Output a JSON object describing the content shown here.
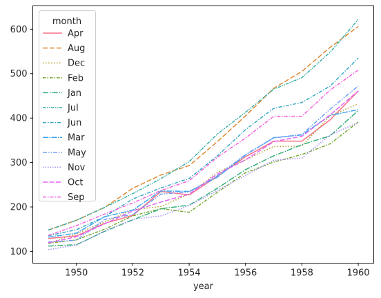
{
  "chart_data": {
    "type": "line",
    "title": "",
    "xlabel": "year",
    "ylabel": "",
    "xlim": [
      1948.45,
      1960.55
    ],
    "ylim": [
      73.5,
      652.5
    ],
    "xticks": [
      1950,
      1952,
      1954,
      1956,
      1958,
      1960
    ],
    "yticks": [
      100,
      200,
      300,
      400,
      500,
      600
    ],
    "grid": false,
    "legend": {
      "title": "month",
      "position": "top-left"
    },
    "x": [
      1949,
      1950,
      1951,
      1952,
      1953,
      1954,
      1955,
      1956,
      1957,
      1958,
      1959,
      1960
    ],
    "series": [
      {
        "name": "Apr",
        "color": "#f77189",
        "dash": "",
        "values": [
          129,
          135,
          163,
          181,
          235,
          227,
          269,
          313,
          348,
          348,
          396,
          461
        ]
      },
      {
        "name": "Aug",
        "color": "#dc8932",
        "dash": "7 3",
        "values": [
          148,
          170,
          199,
          242,
          272,
          293,
          347,
          405,
          467,
          505,
          559,
          606
        ]
      },
      {
        "name": "Dec",
        "color": "#ae9d31",
        "dash": "1.5 2.5",
        "values": [
          118,
          140,
          166,
          194,
          201,
          229,
          278,
          306,
          336,
          337,
          405,
          432
        ]
      },
      {
        "name": "Feb",
        "color": "#77ab31",
        "dash": "4.5 2 1.5 2",
        "values": [
          118,
          126,
          150,
          180,
          196,
          188,
          233,
          277,
          301,
          318,
          342,
          391
        ]
      },
      {
        "name": "Jan",
        "color": "#33b07a",
        "dash": "8 2 1.5 2",
        "values": [
          112,
          115,
          145,
          171,
          196,
          204,
          242,
          284,
          315,
          340,
          360,
          417
        ]
      },
      {
        "name": "Jul",
        "color": "#36ada4",
        "dash": "4.5 1.5 1.5 1.5 1.5 1.5",
        "values": [
          148,
          170,
          199,
          230,
          264,
          302,
          364,
          413,
          465,
          491,
          548,
          622
        ]
      },
      {
        "name": "Jun",
        "color": "#38a9c5",
        "dash": "5 2 1.5 2",
        "values": [
          135,
          149,
          178,
          218,
          243,
          264,
          315,
          374,
          422,
          435,
          472,
          535
        ]
      },
      {
        "name": "Mar",
        "color": "#3ba3ec",
        "dash": "8 1.5 1.5 1.5",
        "values": [
          132,
          141,
          178,
          193,
          236,
          235,
          267,
          317,
          356,
          362,
          406,
          419
        ]
      },
      {
        "name": "May",
        "color": "#6e9bf4",
        "dash": "6 2 1.5 2 1.5 2",
        "values": [
          121,
          125,
          172,
          183,
          229,
          234,
          270,
          318,
          355,
          363,
          420,
          472
        ]
      },
      {
        "name": "Nov",
        "color": "#a48cf4",
        "dash": "1.5 2",
        "values": [
          104,
          114,
          146,
          172,
          180,
          203,
          237,
          271,
          305,
          310,
          362,
          390
        ]
      },
      {
        "name": "Oct",
        "color": "#e264f4",
        "dash": "7 2.5",
        "values": [
          119,
          133,
          162,
          191,
          211,
          229,
          274,
          306,
          347,
          359,
          407,
          461
        ]
      },
      {
        "name": "Sep",
        "color": "#f561dd",
        "dash": "5 2 1.5 2",
        "values": [
          136,
          158,
          184,
          209,
          237,
          259,
          312,
          355,
          404,
          404,
          463,
          508
        ]
      }
    ]
  }
}
